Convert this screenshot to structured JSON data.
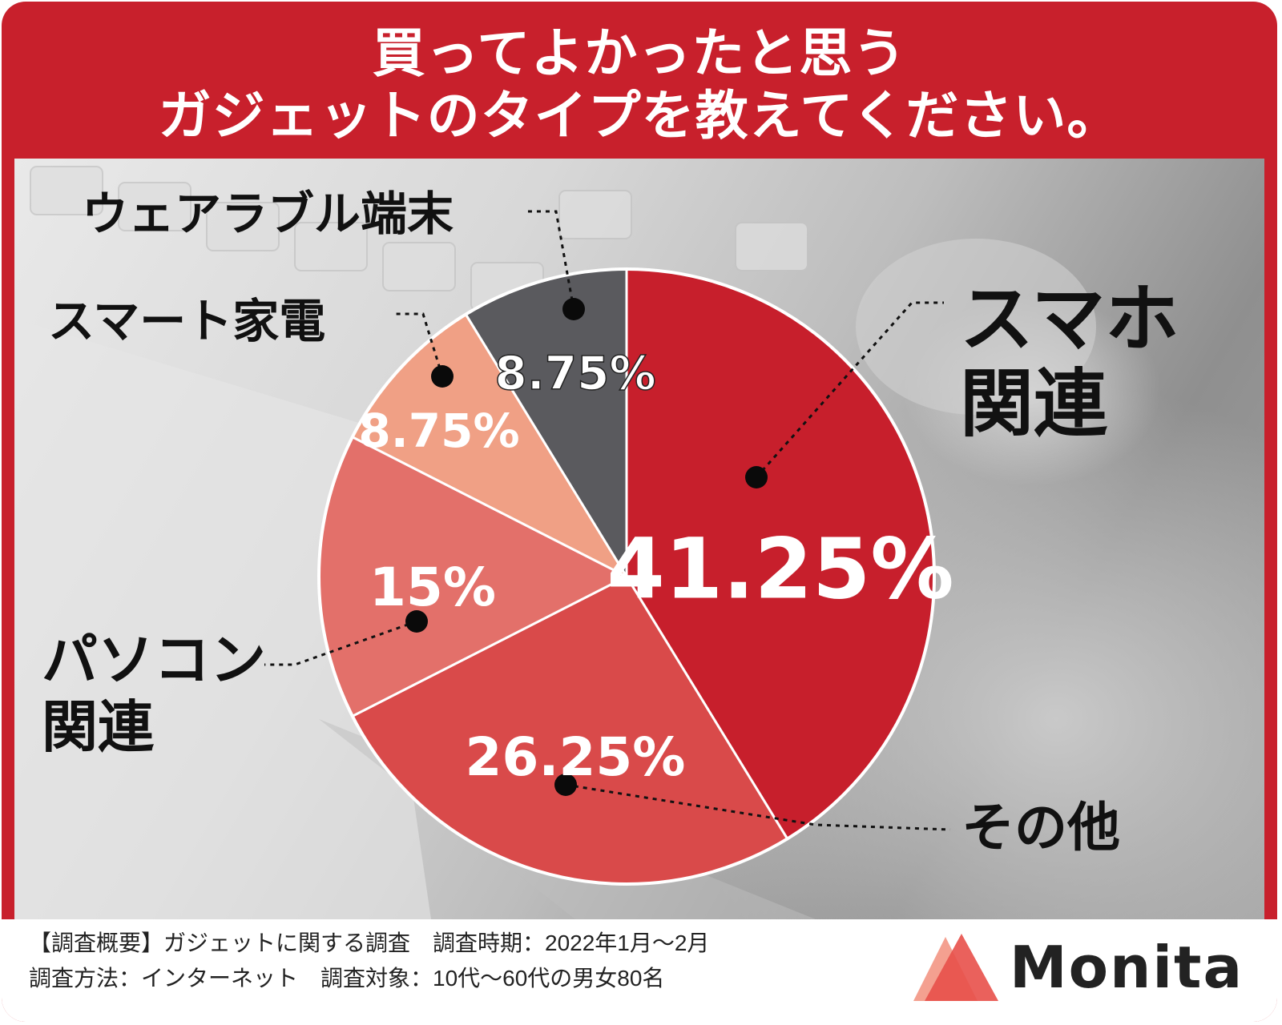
{
  "title": {
    "line1": "買ってよかったと思う",
    "line2": "ガジェットのタイプを教えてください。"
  },
  "chart_data": {
    "type": "pie",
    "title": "買ってよかったと思うガジェットのタイプを教えてください。",
    "categories": [
      "スマホ関連",
      "その他",
      "パソコン関連",
      "スマート家電",
      "ウェアラブル端末"
    ],
    "values": [
      41.25,
      26.25,
      15,
      8.75,
      8.75
    ],
    "value_labels": [
      "41.25%",
      "26.25%",
      "15%",
      "8.75%",
      "8.75%"
    ],
    "colors": [
      "#c71f2c",
      "#d94a4a",
      "#e3706a",
      "#f0a085",
      "#5a5a5e"
    ],
    "label_lines": [
      {
        "line1": "スマホ",
        "line2": "関連"
      },
      {
        "line1": "その他",
        "line2": ""
      },
      {
        "line1": "パソコン",
        "line2": "関連"
      },
      {
        "line1": "スマート家電",
        "line2": ""
      },
      {
        "line1": "ウェアラブル端末",
        "line2": ""
      }
    ]
  },
  "footer": {
    "line1": "【調査概要】ガジェットに関する調査　調査時期：2022年1月〜2月",
    "line2": "調査方法：インターネット　調査対象：10代〜60代の男女80名"
  },
  "logo": {
    "text": "Monita",
    "colors": [
      "#e8504a",
      "#f4a090"
    ]
  }
}
